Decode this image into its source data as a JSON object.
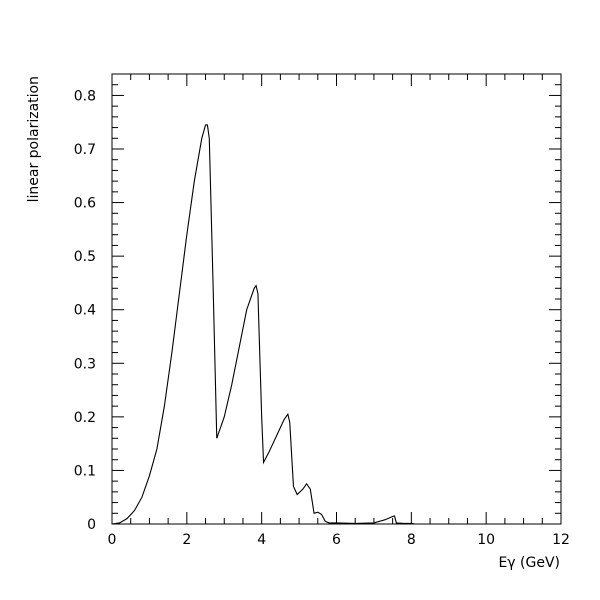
{
  "chart_data": {
    "type": "line",
    "title": "",
    "xlabel": "Eγ (GeV)",
    "ylabel": "linear polarization",
    "xlim": [
      0,
      12
    ],
    "ylim": [
      0,
      0.84
    ],
    "xticks": [
      0,
      2,
      4,
      6,
      8,
      10,
      12
    ],
    "xtick_labels": [
      "0",
      "2",
      "4",
      "6",
      "8",
      "10",
      "12"
    ],
    "yticks": [
      0,
      0.1,
      0.2,
      0.3,
      0.4,
      0.5,
      0.6,
      0.7,
      0.8
    ],
    "ytick_labels": [
      "0",
      "0.1",
      "0.2",
      "0.3",
      "0.4",
      "0.5",
      "0.6",
      "0.7",
      "0.8"
    ],
    "grid": false,
    "legend": "none",
    "line_color": "#000000",
    "series": [
      {
        "x": [
          0.0,
          0.2,
          0.4,
          0.6,
          0.8,
          1.0,
          1.2,
          1.4,
          1.6,
          1.8,
          2.0,
          2.2,
          2.4,
          2.5,
          2.55,
          2.6,
          2.7,
          2.8,
          3.0,
          3.2,
          3.4,
          3.6,
          3.8,
          3.85,
          3.9,
          4.0,
          4.05,
          4.2,
          4.4,
          4.6,
          4.7,
          4.75,
          4.85,
          4.95,
          5.1,
          5.2,
          5.3,
          5.4,
          5.5,
          5.6,
          5.7,
          5.8,
          6.0,
          6.5,
          7.0,
          7.3,
          7.5,
          7.55,
          7.6,
          7.8,
          8.0,
          8.1
        ],
        "y": [
          0.0,
          0.002,
          0.01,
          0.025,
          0.05,
          0.09,
          0.14,
          0.22,
          0.32,
          0.43,
          0.54,
          0.64,
          0.72,
          0.745,
          0.745,
          0.72,
          0.45,
          0.16,
          0.2,
          0.26,
          0.33,
          0.4,
          0.44,
          0.445,
          0.43,
          0.2,
          0.115,
          0.135,
          0.165,
          0.195,
          0.205,
          0.19,
          0.07,
          0.055,
          0.065,
          0.075,
          0.065,
          0.02,
          0.022,
          0.018,
          0.005,
          0.002,
          0.002,
          0.001,
          0.002,
          0.008,
          0.014,
          0.015,
          0.002,
          0.001,
          0.001,
          0.0
        ]
      }
    ]
  }
}
